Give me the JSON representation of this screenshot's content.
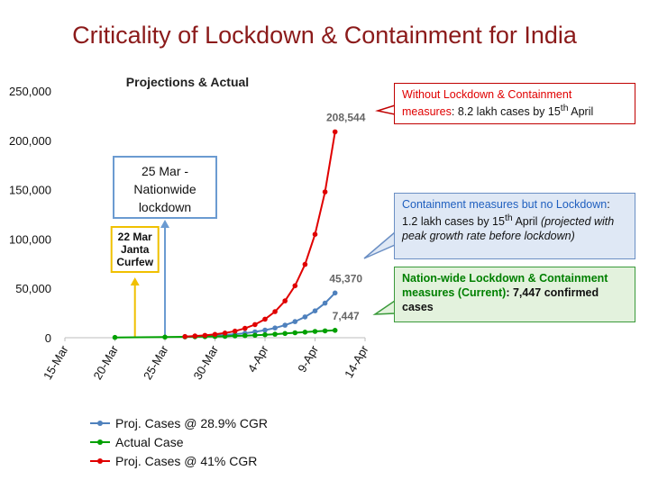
{
  "title": "Criticality of Lockdown & Containment for India",
  "chart_data": {
    "type": "line",
    "title": "Projections & Actual",
    "x_ticks": [
      "15-Mar",
      "20-Mar",
      "25-Mar",
      "30-Mar",
      "4-Apr",
      "9-Apr",
      "14-Apr"
    ],
    "y_ticks": [
      "0",
      "50,000",
      "100,000",
      "150,000",
      "200,000",
      "250,000"
    ],
    "ylim": [
      0,
      250000
    ],
    "xlim": [
      "2020-03-15",
      "2020-04-14"
    ],
    "series": [
      {
        "name": "Proj. Cases @ 28.9% CGR",
        "color": "#4f81bd",
        "x": [
          "2020-03-27",
          "2020-03-28",
          "2020-03-29",
          "2020-03-30",
          "2020-03-31",
          "2020-04-01",
          "2020-04-02",
          "2020-04-03",
          "2020-04-04",
          "2020-04-05",
          "2020-04-06",
          "2020-04-07",
          "2020-04-08",
          "2020-04-09",
          "2020-04-10",
          "2020-04-11"
        ],
        "values": [
          1000,
          1290,
          1660,
          2140,
          2760,
          3560,
          4590,
          5920,
          7630,
          9840,
          12680,
          16350,
          21080,
          27170,
          35030,
          45370
        ],
        "end_label": "45,370"
      },
      {
        "name": "Actual Case",
        "color": "#00a000",
        "x": [
          "2020-03-20",
          "2020-03-25",
          "2020-03-27",
          "2020-03-28",
          "2020-03-29",
          "2020-03-30",
          "2020-03-31",
          "2020-04-01",
          "2020-04-02",
          "2020-04-03",
          "2020-04-04",
          "2020-04-05",
          "2020-04-06",
          "2020-04-07",
          "2020-04-08",
          "2020-04-09",
          "2020-04-10",
          "2020-04-11"
        ],
        "values": [
          250,
          650,
          900,
          1000,
          1100,
          1250,
          1400,
          1800,
          2100,
          2500,
          3000,
          3600,
          4300,
          5000,
          5700,
          6400,
          6900,
          7447
        ],
        "end_label": "7,447"
      },
      {
        "name": "Proj. Cases @ 41% CGR",
        "color": "#e00000",
        "x": [
          "2020-03-27",
          "2020-03-28",
          "2020-03-29",
          "2020-03-30",
          "2020-03-31",
          "2020-04-01",
          "2020-04-02",
          "2020-04-03",
          "2020-04-04",
          "2020-04-05",
          "2020-04-06",
          "2020-04-07",
          "2020-04-08",
          "2020-04-09",
          "2020-04-10",
          "2020-04-11"
        ],
        "values": [
          1200,
          1700,
          2390,
          3370,
          4750,
          6700,
          9450,
          13330,
          18800,
          26500,
          37360,
          52680,
          74280,
          104740,
          147690,
          208544
        ],
        "end_label": "208,544"
      }
    ],
    "annotations": [
      {
        "label_lines": [
          "22 Mar",
          "Janta",
          "Curfew"
        ],
        "x": "2020-03-22",
        "color": "#f0c000"
      },
      {
        "label_lines": [
          "25 Mar -",
          "Nationwide",
          "lockdown"
        ],
        "x": "2020-03-25",
        "color": "#6b9bd1"
      }
    ],
    "legend": "bottom-left",
    "grid": false
  },
  "callouts": {
    "red": {
      "highlight": "Without Lockdown & Containment measures",
      "text": ": 8.2 lakh cases by 15",
      "sup": "th",
      "tail": " April"
    },
    "blue": {
      "highlight": "Containment measures but no Lockdown",
      "text": ": 1.2 lakh cases by 15",
      "sup": "th",
      "tail": " April",
      "italic": "(projected with peak growth rate before lockdown)"
    },
    "green": {
      "highlight": "Nation-wide Lockdown & Containment measures (Current)",
      "text": ": 7,447 confirmed cases"
    }
  }
}
